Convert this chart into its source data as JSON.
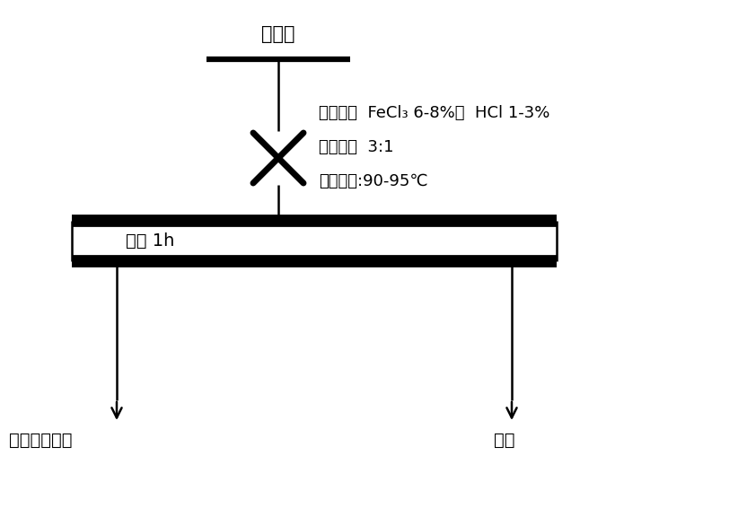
{
  "title_text": "钼精矿",
  "annotation_line1": "浸出剂：  FeCl₃ 6-8%；  HCl 1-3%",
  "annotation_line2": "液固比：  3:1",
  "annotation_line3": "浸出温度:90-95℃",
  "box_label": "浸出 1h",
  "left_label": "高品质钼精矿",
  "right_label": "浸液",
  "bg_color": "#ffffff",
  "line_color": "#000000",
  "font_size_title": 15,
  "font_size_annotation": 13,
  "font_size_box": 14,
  "font_size_bottom": 14
}
